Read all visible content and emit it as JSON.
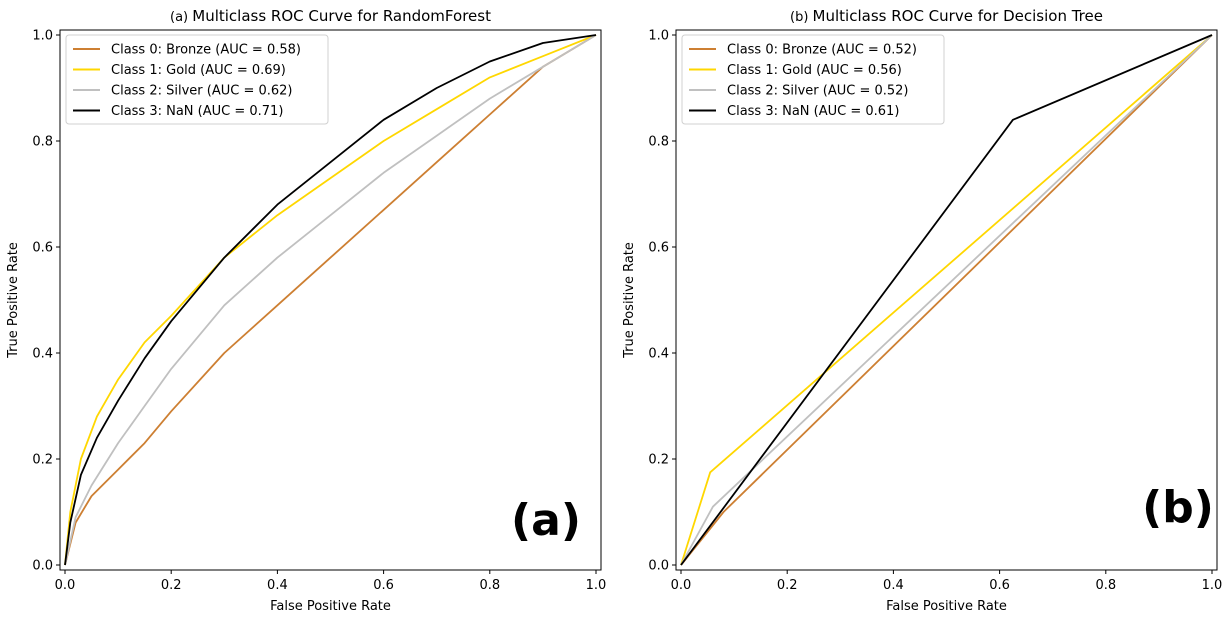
{
  "colors": {
    "bronze": "#cd7f32",
    "gold": "#ffd700",
    "silver": "#c0c0c0",
    "nan": "#000000"
  },
  "chart_data": [
    {
      "type": "line",
      "title": "Multiclass ROC Curve for RandomForest",
      "title_prefix": "(a)",
      "panel_label": "(a)",
      "xlabel": "False Positive Rate",
      "ylabel": "True Positive Rate",
      "xlim": [
        0,
        1
      ],
      "ylim": [
        0,
        1
      ],
      "xticks": [
        "0.0",
        "0.2",
        "0.4",
        "0.6",
        "0.8",
        "1.0"
      ],
      "yticks": [
        "0.0",
        "0.2",
        "0.4",
        "0.6",
        "0.8",
        "1.0"
      ],
      "grid": false,
      "legend_position": "top-left",
      "series": [
        {
          "name": "Class 0: Bronze (AUC = 0.58)",
          "color": "#cd7f32",
          "x": [
            0,
            0.02,
            0.05,
            0.1,
            0.15,
            0.2,
            0.3,
            0.4,
            0.5,
            0.6,
            0.7,
            0.8,
            0.9,
            1.0
          ],
          "y": [
            0,
            0.08,
            0.13,
            0.18,
            0.23,
            0.29,
            0.4,
            0.49,
            0.58,
            0.67,
            0.76,
            0.85,
            0.94,
            1.0
          ]
        },
        {
          "name": "Class 1: Gold (AUC = 0.69)",
          "color": "#ffd700",
          "x": [
            0,
            0.01,
            0.03,
            0.06,
            0.1,
            0.15,
            0.2,
            0.3,
            0.4,
            0.5,
            0.6,
            0.7,
            0.8,
            0.9,
            1.0
          ],
          "y": [
            0,
            0.1,
            0.2,
            0.28,
            0.35,
            0.42,
            0.47,
            0.58,
            0.66,
            0.73,
            0.8,
            0.86,
            0.92,
            0.96,
            1.0
          ]
        },
        {
          "name": "Class 2: Silver (AUC = 0.62)",
          "color": "#c0c0c0",
          "x": [
            0,
            0.02,
            0.05,
            0.1,
            0.15,
            0.2,
            0.3,
            0.4,
            0.5,
            0.6,
            0.7,
            0.8,
            0.9,
            1.0
          ],
          "y": [
            0,
            0.09,
            0.15,
            0.23,
            0.3,
            0.37,
            0.49,
            0.58,
            0.66,
            0.74,
            0.81,
            0.88,
            0.94,
            1.0
          ]
        },
        {
          "name": "Class 3: NaN (AUC = 0.71)",
          "color": "#000000",
          "x": [
            0,
            0.01,
            0.03,
            0.06,
            0.1,
            0.15,
            0.2,
            0.3,
            0.4,
            0.5,
            0.6,
            0.7,
            0.8,
            0.9,
            1.0
          ],
          "y": [
            0,
            0.08,
            0.17,
            0.24,
            0.31,
            0.39,
            0.46,
            0.58,
            0.68,
            0.76,
            0.84,
            0.9,
            0.95,
            0.985,
            1.0
          ]
        }
      ]
    },
    {
      "type": "line",
      "title": "Multiclass ROC Curve for Decision Tree",
      "title_prefix": "(b)",
      "panel_label": "(b)",
      "xlabel": "False Positive Rate",
      "ylabel": "True Positive Rate",
      "xlim": [
        0,
        1
      ],
      "ylim": [
        0,
        1
      ],
      "xticks": [
        "0.0",
        "0.2",
        "0.4",
        "0.6",
        "0.8",
        "1.0"
      ],
      "yticks": [
        "0.0",
        "0.2",
        "0.4",
        "0.6",
        "0.8",
        "1.0"
      ],
      "grid": false,
      "legend_position": "top-left",
      "series": [
        {
          "name": "Class 0: Bronze (AUC = 0.52)",
          "color": "#cd7f32",
          "x": [
            0,
            0.08,
            1.0
          ],
          "y": [
            0,
            0.1,
            1.0
          ]
        },
        {
          "name": "Class 1: Gold (AUC = 0.56)",
          "color": "#ffd700",
          "x": [
            0,
            0.055,
            1.0
          ],
          "y": [
            0,
            0.175,
            1.0
          ]
        },
        {
          "name": "Class 2: Silver (AUC = 0.52)",
          "color": "#c0c0c0",
          "x": [
            0,
            0.06,
            1.0
          ],
          "y": [
            0,
            0.11,
            1.0
          ]
        },
        {
          "name": "Class 3: NaN (AUC = 0.61)",
          "color": "#000000",
          "x": [
            0,
            0.625,
            1.0
          ],
          "y": [
            0,
            0.84,
            1.0
          ]
        }
      ]
    }
  ]
}
